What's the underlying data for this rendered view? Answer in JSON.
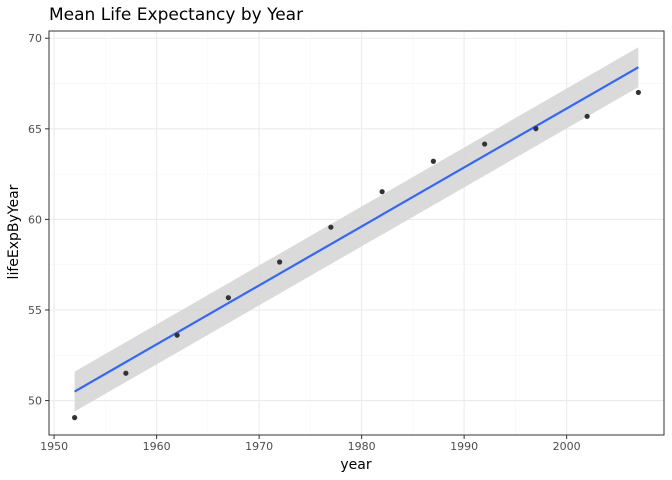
{
  "chart_data": {
    "type": "scatter",
    "title": "Mean Life Expectancy by Year",
    "xlabel": "year",
    "ylabel": "lifeExpByYear",
    "xlim": [
      1949.5,
      2009.5
    ],
    "ylim": [
      48.1,
      70.4
    ],
    "x_ticks": [
      1950,
      1960,
      1970,
      1980,
      1990,
      2000
    ],
    "y_ticks": [
      50,
      55,
      60,
      65,
      70
    ],
    "grid": true,
    "series": [
      {
        "x": [
          1952,
          1957,
          1962,
          1967,
          1972,
          1977,
          1982,
          1987,
          1992,
          1997,
          2002,
          2007
        ],
        "y": [
          49.06,
          51.51,
          53.61,
          55.68,
          57.65,
          59.57,
          61.53,
          63.21,
          64.16,
          65.01,
          65.69,
          67.01
        ]
      }
    ],
    "trend_line": {
      "x": [
        1952,
        2007
      ],
      "y": [
        50.5,
        68.4
      ],
      "ci_lower": [
        49.4,
        67.3
      ],
      "ci_upper": [
        51.6,
        69.5
      ]
    },
    "colors": {
      "points": "#333333",
      "trend": "#3366ff",
      "ci_band": "#d3d3d3",
      "grid_major": "#ebebeb",
      "grid_minor": "#f5f5f5",
      "panel_border": "#333333"
    }
  }
}
